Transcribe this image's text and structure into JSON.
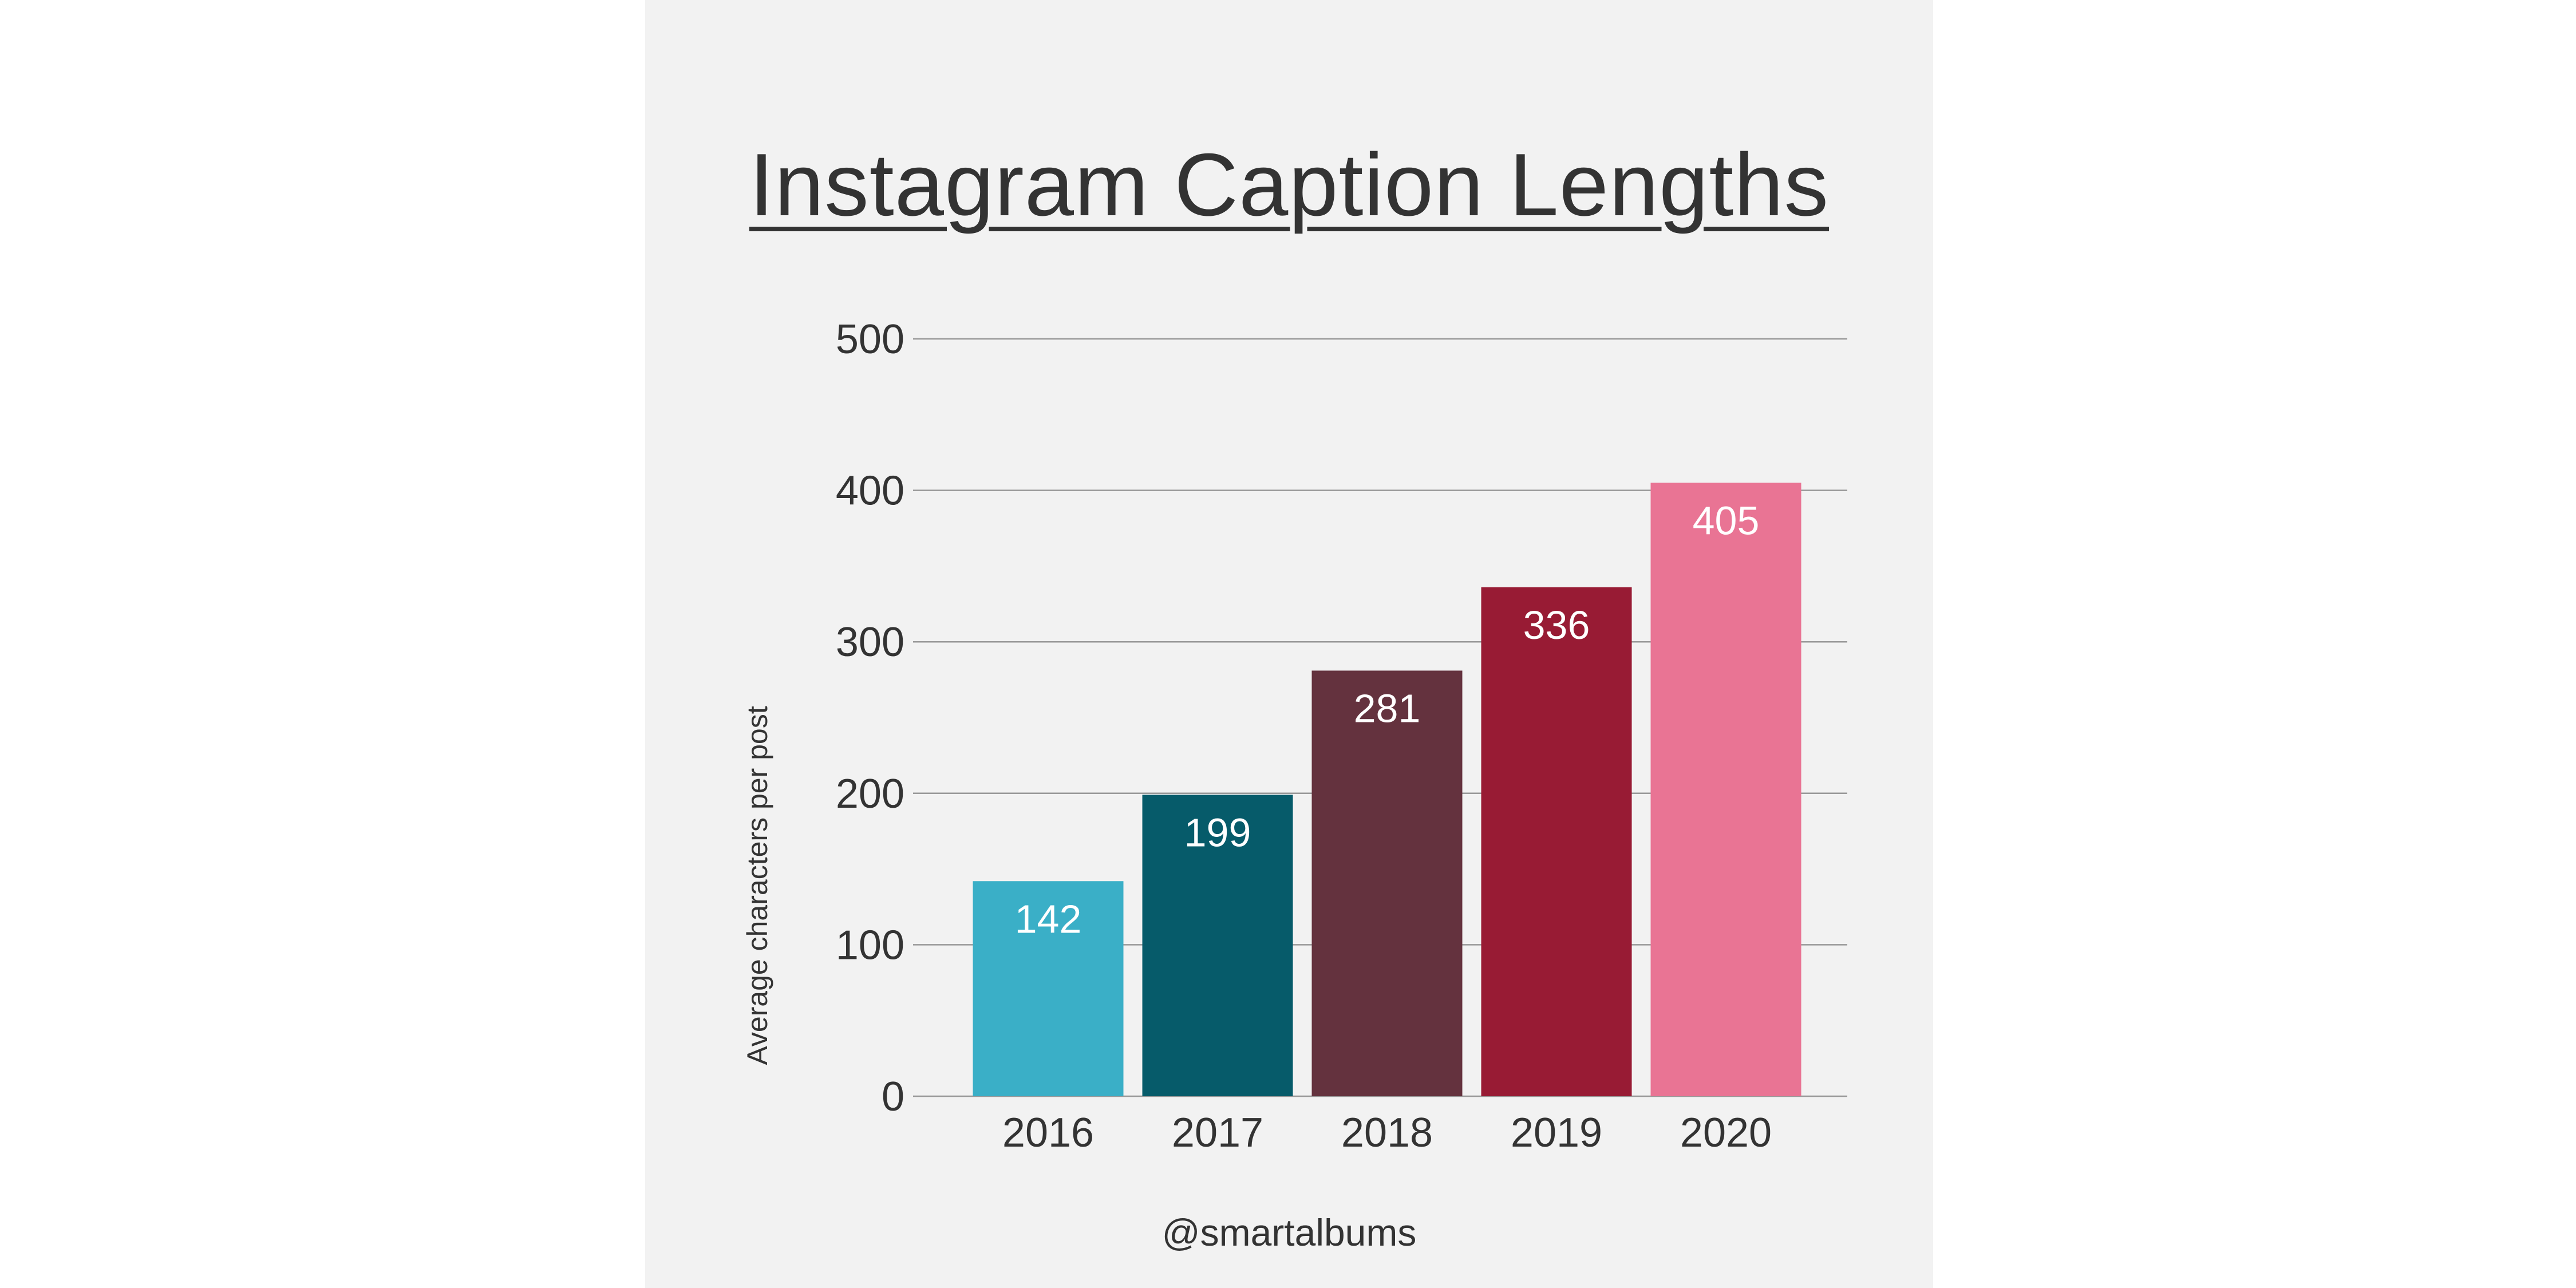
{
  "chart_data": {
    "type": "bar",
    "title": "Instagram Caption Lengths",
    "xlabel": "",
    "ylabel": "Average characters per post",
    "categories": [
      "2016",
      "2017",
      "2018",
      "2019",
      "2020"
    ],
    "values": [
      142,
      199,
      281,
      336,
      405
    ],
    "data_labels": [
      "142",
      "199",
      "281",
      "336",
      "405"
    ],
    "bar_colors": [
      "#3aafc7",
      "#065b6a",
      "#64323e",
      "#981b34",
      "#e97494"
    ],
    "ylim": [
      0,
      500
    ],
    "yticks": [
      0,
      100,
      200,
      300,
      400,
      500
    ],
    "ytick_labels": [
      "0",
      "100",
      "200",
      "300",
      "400",
      "500"
    ],
    "grid": true,
    "legend": "none"
  },
  "footer": {
    "handle": "@smartalbums"
  },
  "colors": {
    "background": "#f2f2f2",
    "text": "#333333",
    "gridline": "#999999"
  }
}
